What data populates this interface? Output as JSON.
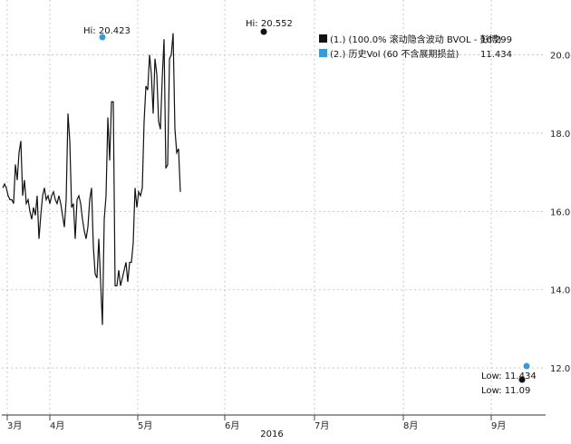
{
  "chart_data": {
    "type": "line",
    "title": "",
    "xlabel": "",
    "ylabel": "",
    "ylim": [
      10.8,
      21.4
    ],
    "yticks": [
      "20.00",
      "18.00",
      "16.00",
      "14.00",
      "12.00"
    ],
    "xticks": [
      "3月",
      "4月",
      "5月",
      "6月",
      "7月",
      "8月",
      "9月"
    ],
    "year_label": "2016",
    "grid": true,
    "legend_position": "top-right",
    "legend": [
      {
        "label": "(1.)  (100.0% 滚动隐含波动 BVOL - 彭博)",
        "last": "16.299",
        "color": "#111111"
      },
      {
        "label": "(2.) 历史Vol (60 不含展期损益)",
        "last": "11.434",
        "color": "#3a9ad9"
      }
    ],
    "annotations": {
      "black_high": "Hi: 20.552",
      "blue_high": "Hi: 20.423",
      "blue_low": "Low: 11.434",
      "black_low": "Low: 11.09"
    },
    "series": [
      {
        "name": "(1.)  (100.0% 滚动隐含波动 BVOL - 彭博)",
        "color": "#111111",
        "x": [
          3,
          5,
          7,
          9,
          11,
          13,
          15,
          17,
          19,
          21,
          23,
          25,
          27,
          29,
          31,
          33,
          35,
          37,
          39,
          41,
          43,
          45,
          47,
          49,
          51,
          53,
          55,
          57,
          59,
          61,
          63,
          65,
          67,
          69,
          71,
          73,
          75,
          77,
          79,
          81,
          83,
          85,
          87,
          89,
          91,
          93,
          95,
          97,
          99,
          101,
          103,
          105,
          107,
          109,
          111,
          113,
          115,
          117,
          119,
          121,
          123,
          125,
          127,
          129,
          131,
          133,
          135,
          137,
          139,
          141,
          143,
          145,
          147,
          149,
          151,
          153,
          155,
          157,
          159,
          161,
          163,
          165,
          167,
          169,
          171,
          173,
          175,
          177,
          179,
          181,
          183,
          185,
          187,
          189,
          191,
          193,
          195,
          197,
          199
        ],
        "values": [
          16.6,
          16.7,
          16.6,
          16.4,
          16.3,
          16.3,
          16.2,
          17.2,
          16.8,
          17.5,
          17.8,
          16.4,
          16.8,
          16.2,
          16.3,
          16.0,
          15.8,
          16.1,
          15.9,
          16.4,
          15.3,
          15.9,
          16.4,
          16.6,
          16.3,
          16.4,
          16.2,
          16.4,
          16.5,
          16.3,
          16.2,
          16.4,
          16.2,
          15.9,
          15.6,
          16.3,
          18.5,
          17.8,
          16.1,
          16.2,
          15.3,
          16.3,
          16.4,
          16.2,
          15.8,
          15.5,
          15.3,
          15.6,
          16.3,
          16.6,
          15.1,
          14.4,
          14.3,
          15.3,
          14.2,
          13.1,
          15.8,
          16.4,
          18.4,
          17.3,
          18.8,
          18.8,
          14.1,
          14.1,
          14.5,
          14.1,
          14.3,
          14.5,
          14.7,
          14.2,
          14.7,
          14.7,
          15.2,
          16.6,
          16.1,
          16.5,
          16.4,
          16.6,
          18.3,
          19.2,
          19.1,
          20.0,
          19.5,
          18.5,
          19.9,
          19.5,
          18.3,
          18.1,
          19.4,
          20.4,
          17.1,
          17.2,
          19.9,
          20.0,
          20.552,
          18.1,
          17.5,
          17.6,
          16.5
        ],
        "note": "Partial series; points continue after x=199."
      }
    ]
  }
}
